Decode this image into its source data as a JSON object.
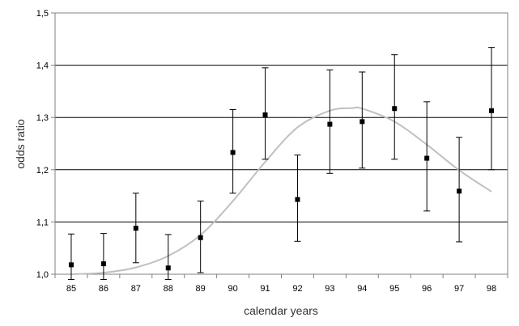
{
  "chart_data": {
    "type": "scatter",
    "title": "",
    "xlabel": "calendar years",
    "ylabel": "odds ratio",
    "categories": [
      "85",
      "86",
      "87",
      "88",
      "89",
      "90",
      "91",
      "92",
      "93",
      "94",
      "95",
      "96",
      "97",
      "98"
    ],
    "ylim": [
      1.0,
      1.5
    ],
    "yticks": [
      1.0,
      1.1,
      1.2,
      1.3,
      1.4,
      1.5
    ],
    "ytick_labels": [
      "1,0",
      "1,1",
      "1,2",
      "1,3",
      "1,4",
      "1,5"
    ],
    "grid": "horizontal",
    "legend": "none",
    "series": [
      {
        "values": [
          1.018,
          1.02,
          1.088,
          1.012,
          1.07,
          1.233,
          1.305,
          1.143,
          1.287,
          1.292,
          1.317,
          1.222,
          1.159,
          1.313
        ],
        "lower": [
          0.99,
          0.99,
          1.022,
          0.99,
          1.003,
          1.155,
          1.22,
          1.063,
          1.193,
          1.203,
          1.22,
          1.121,
          1.062,
          1.2
        ],
        "upper": [
          1.077,
          1.078,
          1.155,
          1.076,
          1.14,
          1.315,
          1.395,
          1.228,
          1.391,
          1.387,
          1.42,
          1.33,
          1.262,
          1.434
        ],
        "color": "#000000"
      }
    ],
    "fit_curve": {
      "x": [
        85,
        86,
        87,
        88,
        89,
        90,
        91,
        92,
        93,
        93.7,
        94,
        95,
        96,
        97,
        98
      ],
      "values": [
        1.0,
        1.003,
        1.013,
        1.035,
        1.075,
        1.14,
        1.215,
        1.281,
        1.313,
        1.318,
        1.317,
        1.292,
        1.248,
        1.199,
        1.158
      ],
      "color": "#c0c0c0"
    }
  }
}
